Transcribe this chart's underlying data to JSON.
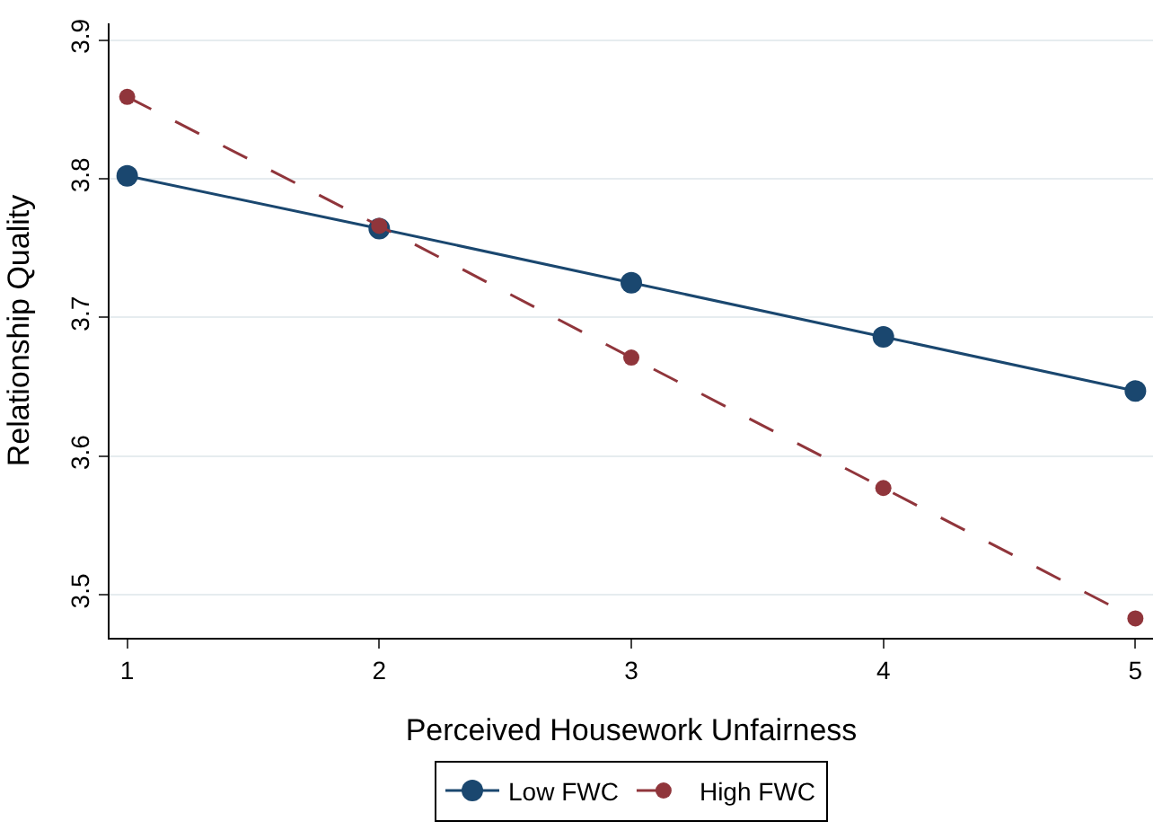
{
  "chart_data": {
    "type": "line",
    "xlabel": "Perceived Housework Unfairness",
    "ylabel": "Relationship Quality",
    "x": [
      1,
      2,
      3,
      4,
      5
    ],
    "series": [
      {
        "name": "Low FWC",
        "color": "#1a476f",
        "values": [
          3.802,
          3.764,
          3.725,
          3.686,
          3.647
        ],
        "line_style": "solid"
      },
      {
        "name": "High FWC",
        "color": "#90353b",
        "values": [
          3.859,
          3.766,
          3.671,
          3.577,
          3.483
        ],
        "line_style": "dashed"
      }
    ],
    "xlim": [
      0.93,
      5.07
    ],
    "xticks": [
      1,
      2,
      3,
      4,
      5
    ],
    "ylim": [
      3.469,
      3.912
    ],
    "yticks": [
      3.5,
      3.6,
      3.7,
      3.8,
      3.9
    ],
    "grid": "y",
    "legend": "bottom",
    "marker": "circle"
  }
}
